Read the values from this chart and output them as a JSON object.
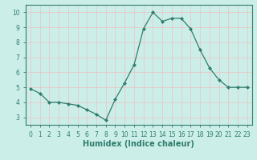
{
  "x": [
    0,
    1,
    2,
    3,
    4,
    5,
    6,
    7,
    8,
    9,
    10,
    11,
    12,
    13,
    14,
    15,
    16,
    17,
    18,
    19,
    20,
    21,
    22,
    23
  ],
  "y": [
    4.9,
    4.6,
    4.0,
    4.0,
    3.9,
    3.8,
    3.5,
    3.2,
    2.8,
    4.2,
    5.3,
    6.5,
    8.9,
    10.0,
    9.4,
    9.6,
    9.6,
    8.9,
    7.5,
    6.3,
    5.5,
    5.0,
    5.0,
    5.0
  ],
  "line_color": "#2e7d6e",
  "marker": "D",
  "marker_size": 2.0,
  "bg_color": "#cceee8",
  "grid_color": "#e8c8c8",
  "xlabel": "Humidex (Indice chaleur)",
  "xlim": [
    -0.5,
    23.5
  ],
  "ylim": [
    2.5,
    10.5
  ],
  "yticks": [
    3,
    4,
    5,
    6,
    7,
    8,
    9,
    10
  ],
  "xticks": [
    0,
    1,
    2,
    3,
    4,
    5,
    6,
    7,
    8,
    9,
    10,
    11,
    12,
    13,
    14,
    15,
    16,
    17,
    18,
    19,
    20,
    21,
    22,
    23
  ],
  "tick_label_fontsize": 5.5,
  "xlabel_fontsize": 7,
  "tick_color": "#2e7d6e",
  "axis_color": "#2e7d6e",
  "linewidth": 0.9
}
